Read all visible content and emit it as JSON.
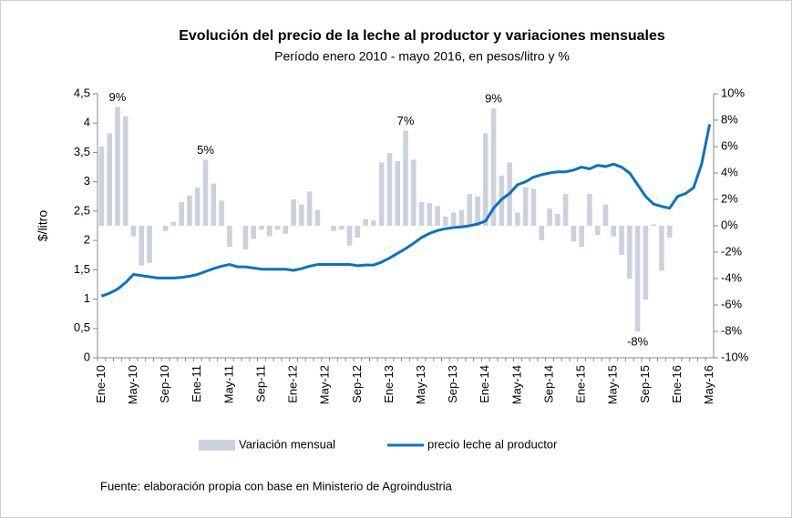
{
  "chart_data": {
    "type": "bar_line",
    "title": "Evolución del precio de la leche al productor y variaciones mensuales",
    "subtitle": "Período enero 2010 - mayo  2016, en pesos/litro y %",
    "y_label": "$/litro",
    "source": "Fuente: elaboración propia con base en Ministerio de Agroindustria",
    "categories": [
      "Ene-10",
      null,
      null,
      null,
      "May-10",
      null,
      null,
      null,
      "Sep-10",
      null,
      null,
      null,
      "Ene-11",
      null,
      null,
      null,
      "May-11",
      null,
      null,
      null,
      "Sep-11",
      null,
      null,
      null,
      "Ene-12",
      null,
      null,
      null,
      "May-12",
      null,
      null,
      null,
      "Sep-12",
      null,
      null,
      null,
      "Ene-13",
      null,
      null,
      null,
      "May-13",
      null,
      null,
      null,
      "Sep-13",
      null,
      null,
      null,
      "Ene-14",
      null,
      null,
      null,
      "May-14",
      null,
      null,
      null,
      "Sep-14",
      null,
      null,
      null,
      "Ene-15",
      null,
      null,
      null,
      "May-15",
      null,
      null,
      null,
      "Sep-15",
      null,
      null,
      null,
      "Ene-16",
      null,
      null,
      null,
      "May-16"
    ],
    "series": [
      {
        "name": "Variación mensual",
        "type": "bar",
        "axis": "y2",
        "color": "#cdd1dc",
        "values": [
          6.0,
          7.0,
          9.0,
          8.3,
          -0.8,
          -3.0,
          -2.8,
          0,
          -0.4,
          0.3,
          1.8,
          2.3,
          2.9,
          5.0,
          3.2,
          1.9,
          -1.6,
          0,
          -1.8,
          -1.0,
          -0.3,
          -0.8,
          -0.3,
          -0.6,
          2.0,
          1.6,
          2.6,
          1.2,
          0,
          -0.4,
          -0.3,
          -1.5,
          -0.9,
          0.5,
          0.4,
          4.8,
          5.5,
          4.9,
          7.2,
          5.0,
          1.8,
          1.7,
          1.5,
          0.7,
          1.0,
          1.2,
          2.4,
          2.2,
          7.0,
          8.9,
          3.8,
          4.8,
          1.0,
          2.9,
          2.8,
          -1.1,
          1.3,
          0.9,
          2.4,
          -1.2,
          -1.6,
          2.4,
          -0.7,
          1.6,
          -0.8,
          -2.2,
          -4.0,
          -8.0,
          -5.6,
          0.1,
          -3.4,
          -0.9,
          null,
          null,
          null,
          null,
          null
        ],
        "value_labels": [
          null,
          null,
          "9%",
          null,
          null,
          null,
          null,
          null,
          null,
          null,
          null,
          null,
          null,
          "5%",
          null,
          null,
          null,
          null,
          null,
          null,
          null,
          null,
          null,
          null,
          null,
          null,
          null,
          null,
          null,
          null,
          null,
          null,
          null,
          null,
          null,
          null,
          null,
          null,
          "7%",
          null,
          null,
          null,
          null,
          null,
          null,
          null,
          null,
          null,
          null,
          "9%",
          null,
          null,
          null,
          null,
          null,
          null,
          null,
          null,
          null,
          null,
          null,
          null,
          null,
          null,
          null,
          null,
          null,
          "-8%",
          null,
          null,
          null,
          null,
          null,
          null,
          null,
          null,
          null
        ]
      },
      {
        "name": "precio leche al productor",
        "type": "line",
        "color": "#0b72c2",
        "values": [
          1.05,
          1.1,
          1.17,
          1.28,
          1.42,
          1.4,
          1.38,
          1.36,
          1.36,
          1.36,
          1.37,
          1.39,
          1.42,
          1.47,
          1.52,
          1.56,
          1.59,
          1.55,
          1.55,
          1.53,
          1.51,
          1.51,
          1.51,
          1.51,
          1.49,
          1.52,
          1.56,
          1.59,
          1.59,
          1.59,
          1.59,
          1.59,
          1.57,
          1.58,
          1.58,
          1.63,
          1.7,
          1.78,
          1.86,
          1.95,
          2.05,
          2.12,
          2.17,
          2.2,
          2.22,
          2.23,
          2.25,
          2.28,
          2.33,
          2.55,
          2.7,
          2.8,
          2.95,
          3.0,
          3.08,
          3.12,
          3.15,
          3.17,
          3.17,
          3.2,
          3.25,
          3.22,
          3.28,
          3.26,
          3.3,
          3.25,
          3.15,
          2.95,
          2.75,
          2.62,
          2.58,
          2.55,
          2.75,
          2.8,
          2.9,
          3.3,
          3.98
        ]
      }
    ],
    "ylim": [
      0,
      4.5
    ],
    "yticks": [
      0,
      {
        "value": 0.5,
        "label": "0,5"
      },
      1,
      {
        "value": 1.5,
        "label": "1,5"
      },
      2,
      {
        "value": 2.5,
        "label": "2,5"
      },
      3,
      {
        "value": 3.5,
        "label": "3,5"
      },
      4,
      {
        "value": 4.5,
        "label": "4,5"
      }
    ],
    "y2lim": [
      -10,
      10
    ],
    "y2ticks": [
      {
        "value": -10,
        "label": "-10%"
      },
      {
        "value": -8,
        "label": "-8%"
      },
      {
        "value": -6,
        "label": "-6%"
      },
      {
        "value": -4,
        "label": "-4%"
      },
      {
        "value": -2,
        "label": "-2%"
      },
      {
        "value": 0,
        "label": "0%"
      },
      {
        "value": 2,
        "label": "2%"
      },
      {
        "value": 4,
        "label": "4%"
      },
      {
        "value": 6,
        "label": "6%"
      },
      {
        "value": 8,
        "label": "8%"
      },
      {
        "value": 10,
        "label": "10%"
      }
    ],
    "grid": false,
    "legend": "bottom"
  }
}
